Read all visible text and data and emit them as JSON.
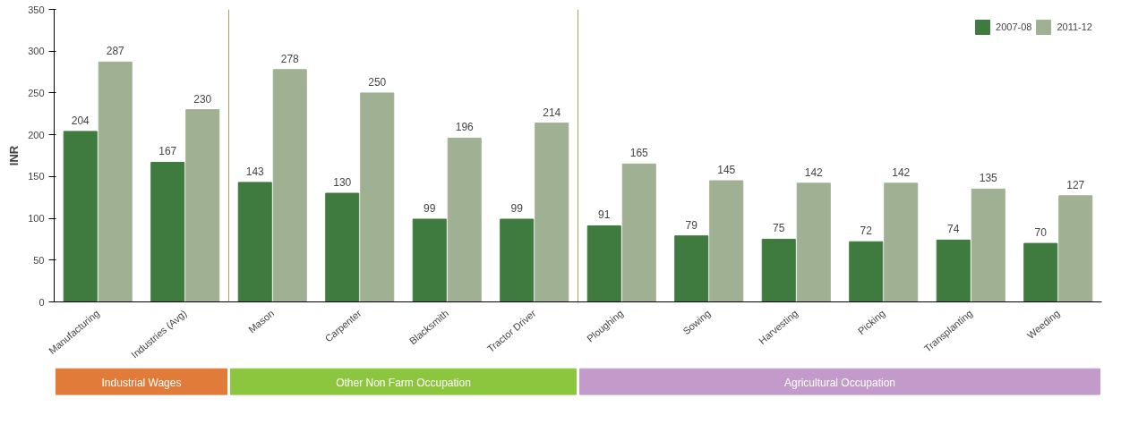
{
  "chart_data": {
    "type": "bar",
    "ylabel": "INR",
    "categories": [
      "Manufacturing",
      "Industries (Avg)",
      "Mason",
      "Carpenter",
      "Blacksmith",
      "Tractor Driver",
      "Ploughing",
      "Sowing",
      "Harvesting",
      "Picking",
      "Transplanting",
      "Weeding"
    ],
    "series": [
      {
        "name": "2007-08",
        "color": "#3f7a3f",
        "values": [
          204,
          167,
          143,
          130,
          99,
          99,
          91,
          79,
          75,
          72,
          74,
          70
        ]
      },
      {
        "name": "2011-12",
        "color": "#a0b092",
        "values": [
          287,
          230,
          278,
          250,
          196,
          214,
          165,
          145,
          142,
          142,
          135,
          127
        ]
      }
    ],
    "ylim": [
      0,
      350
    ],
    "yticks": [
      0,
      50,
      100,
      150,
      200,
      250,
      300,
      350
    ],
    "grid": false,
    "legend": "top right",
    "data_labels": true,
    "annotations": [
      "Industrial Wages",
      "Other Non Farm Occupation",
      "Agricultural Occupation"
    ]
  }
}
